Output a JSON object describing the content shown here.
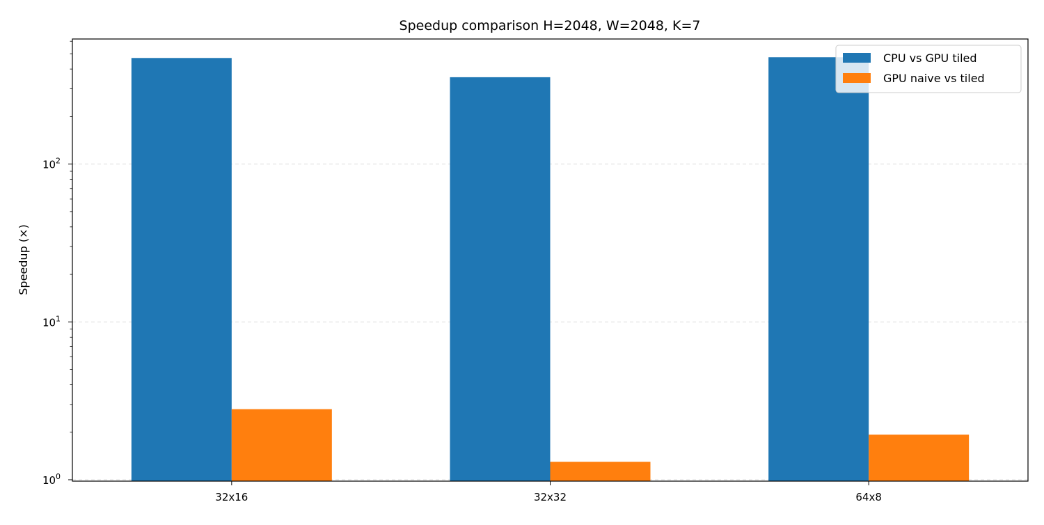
{
  "chart_data": {
    "type": "bar",
    "title": "Speedup comparison H=2048, W=2048, K=7",
    "xlabel": "",
    "ylabel": "Speedup (×)",
    "yscale": "log",
    "ylim": [
      0.98,
      620
    ],
    "yticks": [
      {
        "value": 1,
        "base": "10",
        "exp": "0"
      },
      {
        "value": 10,
        "base": "10",
        "exp": "1"
      },
      {
        "value": 100,
        "base": "10",
        "exp": "2"
      }
    ],
    "grid": {
      "y_major": true,
      "style": "dashed"
    },
    "legend": {
      "position": "top-right"
    },
    "categories": [
      "32x16",
      "32x32",
      "64x8"
    ],
    "series": [
      {
        "name": "CPU vs GPU tiled",
        "color": "#1f77b4",
        "values": [
          470,
          355,
          475
        ]
      },
      {
        "name": "GPU naive vs tiled",
        "color": "#ff7f0e",
        "values": [
          2.8,
          1.3,
          1.93
        ]
      }
    ]
  }
}
